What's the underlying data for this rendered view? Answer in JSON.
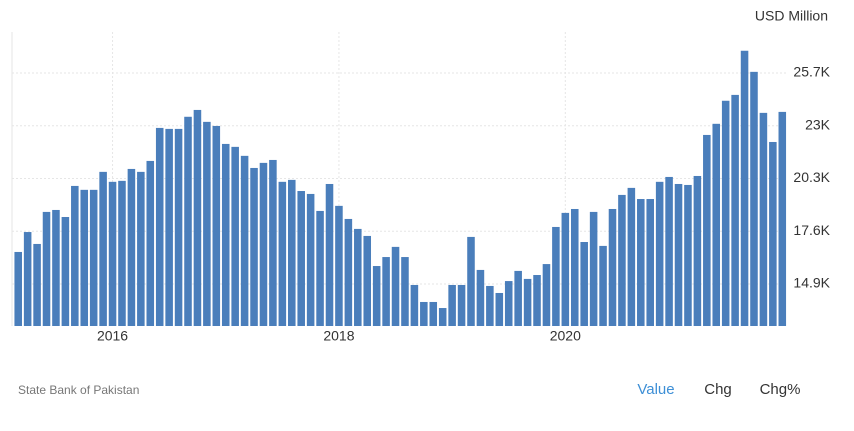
{
  "chart_data": {
    "type": "bar",
    "units": "USD Million",
    "source": "State Bank of Pakistan",
    "color": "#4a7ebb",
    "categories": [
      null,
      null,
      null,
      null,
      null,
      null,
      null,
      null,
      null,
      null,
      "2016",
      null,
      null,
      null,
      null,
      null,
      null,
      null,
      null,
      null,
      null,
      null,
      null,
      null,
      null,
      null,
      null,
      null,
      null,
      null,
      null,
      null,
      null,
      null,
      "2018",
      null,
      null,
      null,
      null,
      null,
      null,
      null,
      null,
      null,
      null,
      null,
      null,
      null,
      null,
      null,
      null,
      null,
      null,
      null,
      null,
      null,
      null,
      null,
      "2020",
      null,
      null,
      null,
      null,
      null,
      null,
      null,
      null,
      null,
      null,
      null,
      null,
      null,
      null,
      null,
      null,
      null,
      null,
      null,
      null,
      null,
      null,
      null
    ],
    "values": [
      16540,
      17560,
      16950,
      18590,
      18690,
      18330,
      19920,
      19720,
      19720,
      20640,
      20130,
      20180,
      20790,
      20640,
      21200,
      22890,
      22840,
      22840,
      23460,
      23810,
      23200,
      22990,
      22070,
      21920,
      21460,
      20840,
      21100,
      21250,
      20130,
      20230,
      19660,
      19510,
      18640,
      20020,
      18900,
      18230,
      17720,
      17360,
      15820,
      16280,
      16800,
      16280,
      14850,
      13980,
      13980,
      13670,
      14850,
      14850,
      17310,
      15620,
      14800,
      14440,
      15050,
      15570,
      15160,
      15360,
      15920,
      17820,
      18540,
      18740,
      17050,
      18590,
      16850,
      18740,
      19460,
      19820,
      19250,
      19250,
      20130,
      20380,
      20020,
      19970,
      20430,
      22530,
      23100,
      24280,
      24580,
      26840,
      25760,
      23660,
      22170,
      23710
    ],
    "ylim": [
      12750,
      27800
    ],
    "yticks": [
      {
        "value": 14900,
        "label": "14.9K"
      },
      {
        "value": 17600,
        "label": "17.6K"
      },
      {
        "value": 20300,
        "label": "20.3K"
      },
      {
        "value": 23000,
        "label": "23K"
      },
      {
        "value": 25700,
        "label": "25.7K"
      }
    ],
    "grid": true
  },
  "controls": [
    "Value",
    "Chg",
    "Chg%"
  ]
}
